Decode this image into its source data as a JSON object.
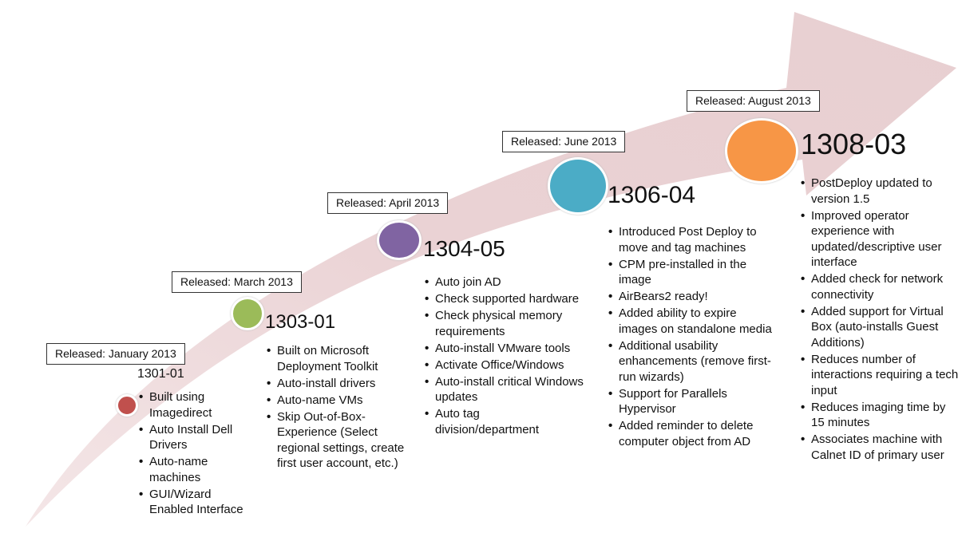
{
  "colors": {
    "arrow": "#ecd6d8",
    "r1301": "#c0504d",
    "r1303": "#9bbb59",
    "r1304": "#8064a2",
    "r1306": "#4bacc6",
    "r1308": "#f79646"
  },
  "releases": [
    {
      "released": "Released: January 2013",
      "version": "1301-01",
      "items": [
        "Built using Imagedirect",
        "Auto Install Dell Drivers",
        "Auto-name machines",
        "GUI/Wizard Enabled Interface"
      ]
    },
    {
      "released": "Released: March 2013",
      "version": "1303-01",
      "items": [
        "Built on Microsoft Deployment Toolkit",
        "Auto-install drivers",
        "Auto-name VMs",
        "Skip Out-of-Box-Experience (Select regional settings, create first user account, etc.)"
      ]
    },
    {
      "released": "Released: April 2013",
      "version": "1304-05",
      "items": [
        "Auto join AD",
        "Check supported hardware",
        "Check physical memory requirements",
        "Auto-install VMware tools",
        "Activate Office/Windows",
        "Auto-install critical Windows updates",
        "Auto tag division/department"
      ]
    },
    {
      "released": "Released: June 2013",
      "version": "1306-04",
      "items": [
        "Introduced Post Deploy to move and tag machines",
        "CPM pre-installed in the image",
        "AirBears2 ready!",
        "Added ability to expire images on standalone media",
        "Additional usability enhancements (remove first-run wizards)",
        "Support for Parallels Hypervisor",
        "Added reminder to delete computer object from AD"
      ]
    },
    {
      "released": "Released: August 2013",
      "version": "1308-03",
      "items": [
        "PostDeploy updated to version 1.5",
        "Improved operator experience with updated/descriptive user interface",
        "Added check for network connectivity",
        "Added support for Virtual Box (auto-installs Guest Additions)",
        "Reduces number of interactions requiring a tech input",
        "Reduces imaging time by 15 minutes",
        "Associates machine with Calnet ID of primary user"
      ]
    }
  ]
}
